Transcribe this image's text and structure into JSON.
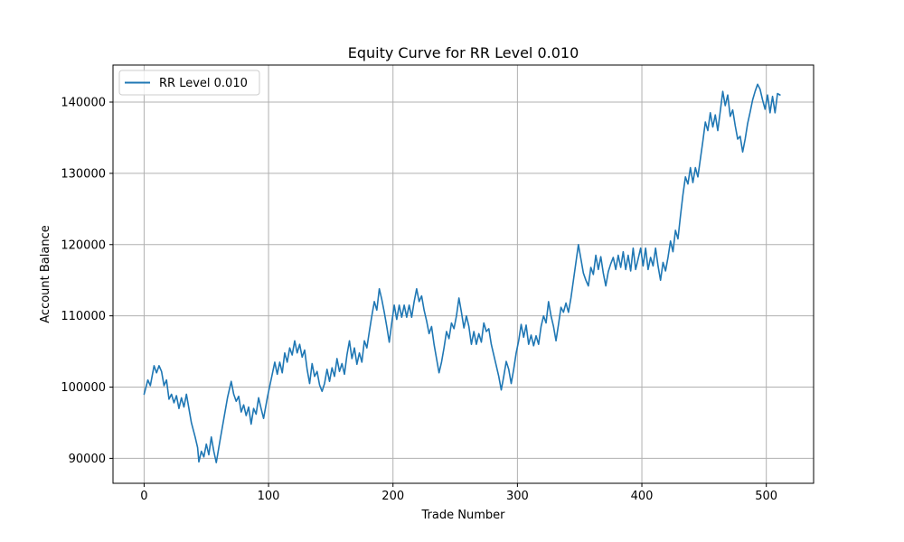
{
  "chart_data": {
    "type": "line",
    "title": "Equity Curve for RR Level 0.010",
    "xlabel": "Trade Number",
    "ylabel": "Account Balance",
    "xlim": [
      -25,
      538
    ],
    "ylim": [
      86500,
      145200
    ],
    "xticks": [
      0,
      100,
      200,
      300,
      400,
      500
    ],
    "yticks": [
      90000,
      100000,
      110000,
      120000,
      130000,
      140000
    ],
    "grid": true,
    "legend_position": "top-left",
    "series": [
      {
        "name": "RR Level 0.010",
        "color": "#1f77b4",
        "points": [
          [
            0,
            99000
          ],
          [
            3,
            101000
          ],
          [
            5,
            100200
          ],
          [
            8,
            103000
          ],
          [
            10,
            102000
          ],
          [
            12,
            103000
          ],
          [
            14,
            102200
          ],
          [
            16,
            100200
          ],
          [
            18,
            101000
          ],
          [
            20,
            98300
          ],
          [
            22,
            99000
          ],
          [
            24,
            97800
          ],
          [
            26,
            98800
          ],
          [
            28,
            97000
          ],
          [
            30,
            98500
          ],
          [
            32,
            97200
          ],
          [
            34,
            99000
          ],
          [
            36,
            97000
          ],
          [
            38,
            95000
          ],
          [
            41,
            93000
          ],
          [
            43,
            91500
          ],
          [
            44,
            89500
          ],
          [
            46,
            91000
          ],
          [
            48,
            90200
          ],
          [
            50,
            92000
          ],
          [
            52,
            90500
          ],
          [
            54,
            93000
          ],
          [
            56,
            91000
          ],
          [
            58,
            89400
          ],
          [
            61,
            92500
          ],
          [
            64,
            95500
          ],
          [
            67,
            98500
          ],
          [
            70,
            100800
          ],
          [
            72,
            99000
          ],
          [
            74,
            98000
          ],
          [
            76,
            98700
          ],
          [
            78,
            96500
          ],
          [
            80,
            97500
          ],
          [
            82,
            96000
          ],
          [
            84,
            97200
          ],
          [
            86,
            94800
          ],
          [
            88,
            97000
          ],
          [
            90,
            96200
          ],
          [
            92,
            98500
          ],
          [
            94,
            97000
          ],
          [
            96,
            95600
          ],
          [
            99,
            98500
          ],
          [
            102,
            101000
          ],
          [
            105,
            103500
          ],
          [
            107,
            101800
          ],
          [
            109,
            103500
          ],
          [
            111,
            102000
          ],
          [
            113,
            104800
          ],
          [
            115,
            103500
          ],
          [
            117,
            105500
          ],
          [
            119,
            104500
          ],
          [
            121,
            106500
          ],
          [
            123,
            104800
          ],
          [
            125,
            106000
          ],
          [
            127,
            104200
          ],
          [
            129,
            105200
          ],
          [
            131,
            102500
          ],
          [
            133,
            100500
          ],
          [
            135,
            103300
          ],
          [
            137,
            101500
          ],
          [
            139,
            102200
          ],
          [
            141,
            100300
          ],
          [
            143,
            99400
          ],
          [
            145,
            100500
          ],
          [
            147,
            102500
          ],
          [
            149,
            100800
          ],
          [
            151,
            102700
          ],
          [
            153,
            101500
          ],
          [
            155,
            104000
          ],
          [
            157,
            102200
          ],
          [
            159,
            103300
          ],
          [
            161,
            101800
          ],
          [
            163,
            104500
          ],
          [
            165,
            106500
          ],
          [
            167,
            104000
          ],
          [
            169,
            105500
          ],
          [
            171,
            103200
          ],
          [
            173,
            104800
          ],
          [
            175,
            103500
          ],
          [
            177,
            106500
          ],
          [
            179,
            105500
          ],
          [
            181,
            107800
          ],
          [
            183,
            110000
          ],
          [
            185,
            112000
          ],
          [
            187,
            110800
          ],
          [
            189,
            113800
          ],
          [
            191,
            112300
          ],
          [
            193,
            110500
          ],
          [
            195,
            108500
          ],
          [
            197,
            106300
          ],
          [
            199,
            109000
          ],
          [
            201,
            111500
          ],
          [
            203,
            109500
          ],
          [
            205,
            111500
          ],
          [
            207,
            109800
          ],
          [
            209,
            111500
          ],
          [
            211,
            109800
          ],
          [
            213,
            111500
          ],
          [
            215,
            109800
          ],
          [
            217,
            112000
          ],
          [
            219,
            113800
          ],
          [
            221,
            112000
          ],
          [
            223,
            112800
          ],
          [
            225,
            110800
          ],
          [
            227,
            109300
          ],
          [
            229,
            107500
          ],
          [
            231,
            108500
          ],
          [
            233,
            106000
          ],
          [
            235,
            104000
          ],
          [
            237,
            102000
          ],
          [
            239,
            103500
          ],
          [
            241,
            105500
          ],
          [
            243,
            107800
          ],
          [
            245,
            106800
          ],
          [
            247,
            109000
          ],
          [
            249,
            108200
          ],
          [
            251,
            110000
          ],
          [
            253,
            112500
          ],
          [
            255,
            110500
          ],
          [
            257,
            108300
          ],
          [
            259,
            110000
          ],
          [
            261,
            108500
          ],
          [
            263,
            106000
          ],
          [
            265,
            107800
          ],
          [
            267,
            106000
          ],
          [
            269,
            107500
          ],
          [
            271,
            106300
          ],
          [
            273,
            109000
          ],
          [
            275,
            107800
          ],
          [
            277,
            108200
          ],
          [
            279,
            106000
          ],
          [
            281,
            104500
          ],
          [
            283,
            103000
          ],
          [
            285,
            101500
          ],
          [
            287,
            99600
          ],
          [
            289,
            101500
          ],
          [
            291,
            103600
          ],
          [
            293,
            102500
          ],
          [
            295,
            100500
          ],
          [
            297,
            102500
          ],
          [
            299,
            104800
          ],
          [
            301,
            106500
          ],
          [
            303,
            108800
          ],
          [
            305,
            107000
          ],
          [
            307,
            108700
          ],
          [
            309,
            106000
          ],
          [
            311,
            107300
          ],
          [
            313,
            105800
          ],
          [
            315,
            107200
          ],
          [
            317,
            106000
          ],
          [
            319,
            108500
          ],
          [
            321,
            110000
          ],
          [
            323,
            109000
          ],
          [
            325,
            112000
          ],
          [
            327,
            110000
          ],
          [
            329,
            108500
          ],
          [
            331,
            106500
          ],
          [
            333,
            108800
          ],
          [
            335,
            111200
          ],
          [
            337,
            110500
          ],
          [
            339,
            111800
          ],
          [
            341,
            110500
          ],
          [
            343,
            112500
          ],
          [
            345,
            115000
          ],
          [
            347,
            117500
          ],
          [
            349,
            120000
          ],
          [
            351,
            118000
          ],
          [
            353,
            116000
          ],
          [
            355,
            115000
          ],
          [
            357,
            114200
          ],
          [
            359,
            116800
          ],
          [
            361,
            115800
          ],
          [
            363,
            118500
          ],
          [
            365,
            116500
          ],
          [
            367,
            118300
          ],
          [
            369,
            116000
          ],
          [
            371,
            114200
          ],
          [
            373,
            116200
          ],
          [
            375,
            117300
          ],
          [
            377,
            118200
          ],
          [
            379,
            116500
          ],
          [
            381,
            118500
          ],
          [
            383,
            116800
          ],
          [
            385,
            119000
          ],
          [
            387,
            116500
          ],
          [
            389,
            118500
          ],
          [
            391,
            116300
          ],
          [
            393,
            119500
          ],
          [
            395,
            116500
          ],
          [
            397,
            118000
          ],
          [
            399,
            119500
          ],
          [
            401,
            117000
          ],
          [
            403,
            119500
          ],
          [
            405,
            116500
          ],
          [
            407,
            118200
          ],
          [
            409,
            117000
          ],
          [
            411,
            119500
          ],
          [
            413,
            117000
          ],
          [
            415,
            115000
          ],
          [
            417,
            117500
          ],
          [
            419,
            116300
          ],
          [
            421,
            118200
          ],
          [
            423,
            120500
          ],
          [
            425,
            119000
          ],
          [
            427,
            122000
          ],
          [
            429,
            120800
          ],
          [
            431,
            124000
          ],
          [
            433,
            127000
          ],
          [
            435,
            129500
          ],
          [
            437,
            128500
          ],
          [
            439,
            130800
          ],
          [
            441,
            128700
          ],
          [
            443,
            130800
          ],
          [
            445,
            129500
          ],
          [
            447,
            132000
          ],
          [
            449,
            134500
          ],
          [
            451,
            137200
          ],
          [
            453,
            136000
          ],
          [
            455,
            138500
          ],
          [
            457,
            136500
          ],
          [
            459,
            138200
          ],
          [
            461,
            136000
          ],
          [
            463,
            138700
          ],
          [
            465,
            141500
          ],
          [
            467,
            139500
          ],
          [
            469,
            141000
          ],
          [
            471,
            138000
          ],
          [
            473,
            138900
          ],
          [
            475,
            136700
          ],
          [
            477,
            134800
          ],
          [
            479,
            135200
          ],
          [
            481,
            133000
          ],
          [
            483,
            134800
          ],
          [
            485,
            137000
          ],
          [
            487,
            138600
          ],
          [
            489,
            140300
          ],
          [
            491,
            141500
          ],
          [
            493,
            142500
          ],
          [
            495,
            141800
          ],
          [
            497,
            140300
          ],
          [
            499,
            139000
          ],
          [
            501,
            141000
          ],
          [
            503,
            138500
          ],
          [
            505,
            140800
          ],
          [
            507,
            138500
          ],
          [
            509,
            141200
          ],
          [
            511,
            141000
          ]
        ]
      }
    ]
  }
}
